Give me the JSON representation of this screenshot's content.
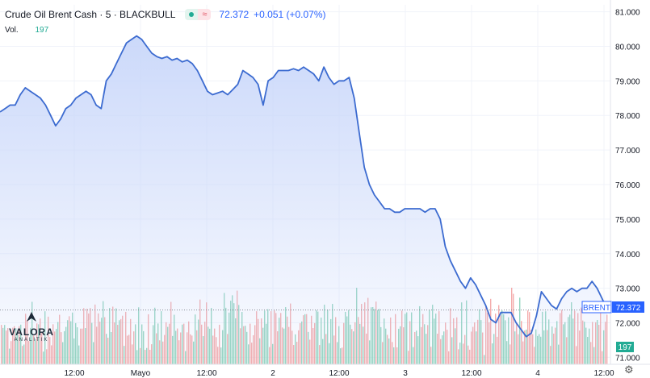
{
  "header": {
    "title": "Crude Oil Brent Cash · 5 · BLACKBULL",
    "last": "72.372",
    "change": "+0.051 (+0.07%)"
  },
  "volume": {
    "label": "Vol.",
    "value": "197"
  },
  "logo": {
    "word": "VALORA",
    "sub": "ANALITIK"
  },
  "colors": {
    "line": "#3c6bd0",
    "area": "#c9d7fa",
    "vol_up": "#7fcdb3",
    "vol_down": "#f29c9c",
    "label_bg": "#2962ff",
    "vol_badge": "#22ab94"
  },
  "chart_data": {
    "type": "area",
    "symbol": "Crude Oil Brent Cash",
    "interval": "5",
    "source": "BLACKBULL",
    "y_ticks": [
      "81.000",
      "80.000",
      "79.000",
      "78.000",
      "77.000",
      "76.000",
      "75.000",
      "74.000",
      "73.000",
      "72.000",
      "71.000"
    ],
    "ylim": [
      70.8,
      81.2
    ],
    "x_ticks": [
      "12:00",
      "Mayo",
      "12:00",
      "2",
      "12:00",
      "3",
      "12:00",
      "4",
      "12:00"
    ],
    "series": [
      {
        "values": [
          78.1,
          78.2,
          78.3,
          78.3,
          78.6,
          78.8,
          78.7,
          78.6,
          78.5,
          78.3,
          78.0,
          77.7,
          77.9,
          78.2,
          78.3,
          78.5,
          78.6,
          78.7,
          78.6,
          78.3,
          78.2,
          79.0,
          79.2,
          79.5,
          79.8,
          80.1,
          80.2,
          80.3,
          80.2,
          80.0,
          79.8,
          79.7,
          79.65,
          79.7,
          79.6,
          79.65,
          79.55,
          79.6,
          79.5,
          79.3,
          79.0,
          78.7,
          78.6,
          78.65,
          78.7,
          78.6,
          78.75,
          78.9,
          79.3,
          79.2,
          79.1,
          78.9,
          78.3,
          79.0,
          79.1,
          79.3,
          79.3,
          79.3,
          79.35,
          79.3,
          79.4,
          79.3,
          79.2,
          79.0,
          79.4,
          79.1,
          78.9,
          79.0,
          79.0,
          79.1,
          78.5,
          77.5,
          76.5,
          76.0,
          75.7,
          75.5,
          75.3,
          75.3,
          75.2,
          75.2,
          75.3,
          75.3,
          75.3,
          75.3,
          75.2,
          75.3,
          75.3,
          75.0,
          74.2,
          73.8,
          73.5,
          73.2,
          73.0,
          73.3,
          73.1,
          72.8,
          72.5,
          72.1,
          72.0,
          72.3,
          72.3,
          72.3,
          72.0,
          71.8,
          71.6,
          71.7,
          72.2,
          72.9,
          72.7,
          72.5,
          72.4,
          72.7,
          72.9,
          73.0,
          72.9,
          73.0,
          73.0,
          73.2,
          73.0,
          72.7,
          72.372
        ],
        "last": 72.372
      }
    ],
    "volume_last": 197,
    "price_label": {
      "name": "BRENT",
      "value": "72.372"
    },
    "volume_badge": "197"
  }
}
